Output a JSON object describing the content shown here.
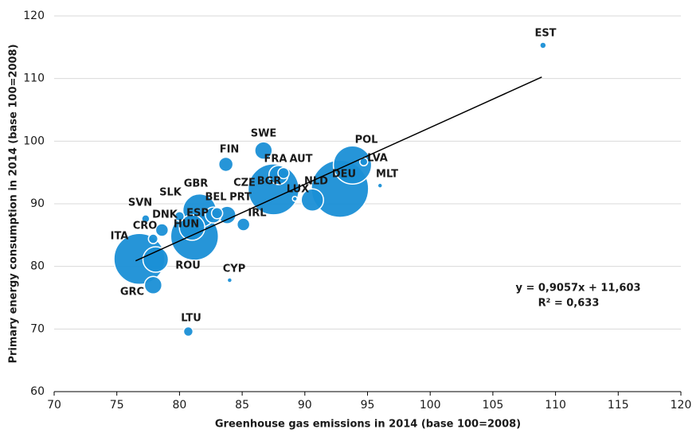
{
  "chart_data": {
    "type": "bubble",
    "x_label": "Greenhouse gas emissions  in 2014 (base 100=2008)",
    "y_label": "Primary energy consumption in 2014 (base 100=2008)",
    "xlim": [
      70,
      120
    ],
    "xticks": [
      70,
      75,
      80,
      85,
      90,
      95,
      100,
      105,
      110,
      115,
      120
    ],
    "ylim": [
      60,
      120
    ],
    "yticks": [
      60,
      70,
      80,
      90,
      100,
      110,
      120
    ],
    "grid": true,
    "color": "#1a8fd6",
    "points": [
      {
        "label": "DEU",
        "x": 92.8,
        "y": 92.4,
        "size": 36
      },
      {
        "label": "BGR",
        "x": 87.5,
        "y": 92.3,
        "size": 32
      },
      {
        "label": "ITA",
        "x": 76.8,
        "y": 81.2,
        "size": 32
      },
      {
        "label": "ESP",
        "x": 81.2,
        "y": 84.8,
        "size": 30
      },
      {
        "label": "POL",
        "x": 93.8,
        "y": 96.2,
        "size": 24
      },
      {
        "label": "GBR",
        "x": 81.6,
        "y": 88.9,
        "size": 21
      },
      {
        "label": "HUN",
        "x": 81.0,
        "y": 86.2,
        "size": 16
      },
      {
        "label": "ROU",
        "x": 78.1,
        "y": 81.1,
        "size": 16
      },
      {
        "label": "NLD",
        "x": 90.6,
        "y": 90.6,
        "size": 14
      },
      {
        "label": "FRA",
        "x": 87.9,
        "y": 94.6,
        "size": 12
      },
      {
        "label": "SWE",
        "x": 86.7,
        "y": 98.5,
        "size": 11
      },
      {
        "label": "CZE",
        "x": 83.8,
        "y": 88.2,
        "size": 11
      },
      {
        "label": "BEL",
        "x": 82.7,
        "y": 88.2,
        "size": 10
      },
      {
        "label": "GRC",
        "x": 77.9,
        "y": 77.0,
        "size": 11
      },
      {
        "label": "FIN",
        "x": 83.7,
        "y": 96.3,
        "size": 9
      },
      {
        "label": "DNK",
        "x": 78.6,
        "y": 85.8,
        "size": 8
      },
      {
        "label": "IRL",
        "x": 85.1,
        "y": 86.7,
        "size": 8
      },
      {
        "label": "AUT",
        "x": 88.3,
        "y": 94.9,
        "size": 7
      },
      {
        "label": "PRT",
        "x": 83.0,
        "y": 88.5,
        "size": 7
      },
      {
        "label": "CRO",
        "x": 77.9,
        "y": 84.4,
        "size": 6
      },
      {
        "label": "LTU",
        "x": 80.7,
        "y": 69.6,
        "size": 6
      },
      {
        "label": "SLK",
        "x": 80.0,
        "y": 88.0,
        "size": 6
      },
      {
        "label": "LVA",
        "x": 94.7,
        "y": 96.7,
        "size": 5
      },
      {
        "label": "SVN",
        "x": 77.3,
        "y": 87.6,
        "size": 5
      },
      {
        "label": "EST",
        "x": 109.0,
        "y": 115.3,
        "size": 4
      },
      {
        "label": "LUX",
        "x": 89.2,
        "y": 90.8,
        "size": 3
      },
      {
        "label": "MLT",
        "x": 96.0,
        "y": 92.9,
        "size": 3
      },
      {
        "label": "CYP",
        "x": 84.0,
        "y": 77.8,
        "size": 3
      }
    ],
    "trendline": {
      "slope": 0.9057,
      "intercept": 11.603,
      "x": [
        76.5,
        108.9
      ],
      "color": "#000000"
    },
    "annotations": [
      "y = 0,9057x + 11,603",
      "R² = 0,633"
    ]
  }
}
